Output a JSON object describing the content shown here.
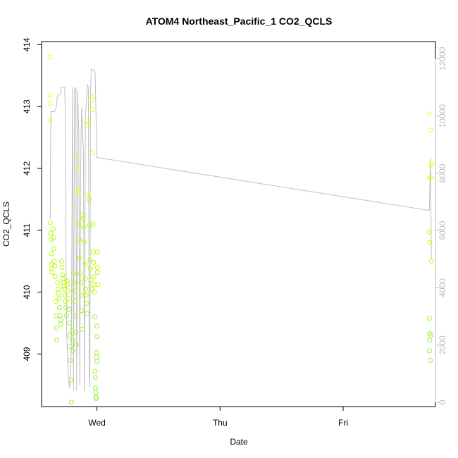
{
  "chart_data": {
    "type": "scatter",
    "title": "ATOM4 Northeast_Pacific_1 CO2_QCLS",
    "xlabel": "Date",
    "ylabel": "CO2_QCLS",
    "x_range_days": [
      -0.45,
      2.75
    ],
    "x_ticks": [
      {
        "label": "Wed",
        "value": 0
      },
      {
        "label": "Thu",
        "value": 1
      },
      {
        "label": "Fri",
        "value": 2
      }
    ],
    "ylim": [
      408.15,
      414.05
    ],
    "y_ticks": [
      409,
      410,
      411,
      412,
      413,
      414
    ],
    "y2lim": [
      -150,
      12600
    ],
    "y2_ticks": [
      0,
      2000,
      4000,
      6000,
      8000,
      10000,
      12000
    ],
    "grid": false,
    "colors": {
      "point_gradient": [
        "#e6ff33",
        "#b4ff00",
        "#9ef03a"
      ],
      "secondary_line": "#c0c0c0",
      "secondary_axis": "#bdbdbd"
    },
    "series": [
      {
        "kind": "points",
        "axis": "left",
        "points": [
          [
            -0.38,
            413.8
          ],
          [
            -0.38,
            413.18
          ],
          [
            -0.38,
            413.05
          ],
          [
            -0.38,
            412.78
          ],
          [
            -0.38,
            411.12
          ],
          [
            -0.375,
            410.95
          ],
          [
            -0.372,
            410.85
          ],
          [
            -0.37,
            410.62
          ],
          [
            -0.368,
            410.45
          ],
          [
            -0.366,
            410.38
          ],
          [
            -0.364,
            410.32
          ],
          [
            -0.355,
            411.02
          ],
          [
            -0.352,
            410.88
          ],
          [
            -0.35,
            410.7
          ],
          [
            -0.347,
            410.5
          ],
          [
            -0.344,
            410.42
          ],
          [
            -0.34,
            410.25
          ],
          [
            -0.336,
            409.85
          ],
          [
            -0.332,
            409.62
          ],
          [
            -0.33,
            409.42
          ],
          [
            -0.328,
            409.22
          ],
          [
            -0.32,
            410.15
          ],
          [
            -0.316,
            410.05
          ],
          [
            -0.312,
            409.98
          ],
          [
            -0.308,
            409.9
          ],
          [
            -0.304,
            409.75
          ],
          [
            -0.3,
            409.62
          ],
          [
            -0.296,
            409.55
          ],
          [
            -0.292,
            409.48
          ],
          [
            -0.288,
            410.5
          ],
          [
            -0.284,
            410.4
          ],
          [
            -0.28,
            410.28
          ],
          [
            -0.276,
            410.22
          ],
          [
            -0.272,
            410.15
          ],
          [
            -0.268,
            410.1
          ],
          [
            -0.264,
            410.05
          ],
          [
            -0.26,
            409.95
          ],
          [
            -0.256,
            409.85
          ],
          [
            -0.252,
            409.75
          ],
          [
            -0.248,
            409.62
          ],
          [
            -0.244,
            410.18
          ],
          [
            -0.24,
            410.12
          ],
          [
            -0.236,
            410.02
          ],
          [
            -0.232,
            409.9
          ],
          [
            -0.228,
            409.72
          ],
          [
            -0.224,
            409.5
          ],
          [
            -0.22,
            409.3
          ],
          [
            -0.218,
            409.12
          ],
          [
            -0.216,
            408.9
          ],
          [
            -0.212,
            408.58
          ],
          [
            -0.208,
            408.22
          ],
          [
            -0.204,
            409.38
          ],
          [
            -0.2,
            409.22
          ],
          [
            -0.196,
            409.05
          ],
          [
            -0.192,
            410.3
          ],
          [
            -0.188,
            410.15
          ],
          [
            -0.184,
            410.02
          ],
          [
            -0.18,
            409.85
          ],
          [
            -0.176,
            409.62
          ],
          [
            -0.172,
            409.35
          ],
          [
            -0.168,
            409.15
          ],
          [
            -0.164,
            412.18
          ],
          [
            -0.16,
            412.0
          ],
          [
            -0.156,
            411.65
          ],
          [
            -0.152,
            411.6
          ],
          [
            -0.148,
            411.1
          ],
          [
            -0.144,
            410.85
          ],
          [
            -0.14,
            410.55
          ],
          [
            -0.136,
            410.3
          ],
          [
            -0.132,
            410.15
          ],
          [
            -0.128,
            409.95
          ],
          [
            -0.124,
            409.7
          ],
          [
            -0.12,
            409.4
          ],
          [
            -0.116,
            411.25
          ],
          [
            -0.112,
            411.18
          ],
          [
            -0.108,
            411.05
          ],
          [
            -0.104,
            410.8
          ],
          [
            -0.1,
            410.45
          ],
          [
            -0.096,
            410.22
          ],
          [
            -0.092,
            410.05
          ],
          [
            -0.088,
            409.95
          ],
          [
            -0.084,
            409.82
          ],
          [
            -0.08,
            409.65
          ],
          [
            -0.076,
            412.78
          ],
          [
            -0.072,
            412.7
          ],
          [
            -0.068,
            411.58
          ],
          [
            -0.064,
            411.5
          ],
          [
            -0.06,
            411.08
          ],
          [
            -0.056,
            410.52
          ],
          [
            -0.052,
            410.38
          ],
          [
            -0.048,
            410.2
          ],
          [
            -0.044,
            410.05
          ],
          [
            -0.04,
            413.15
          ],
          [
            -0.038,
            413.1
          ],
          [
            -0.036,
            412.95
          ],
          [
            -0.034,
            412.25
          ],
          [
            -0.032,
            411.1
          ],
          [
            -0.03,
            410.65
          ],
          [
            -0.028,
            410.48
          ],
          [
            -0.026,
            410.25
          ],
          [
            -0.024,
            410.12
          ],
          [
            -0.02,
            410.0
          ],
          [
            -0.018,
            409.6
          ],
          [
            -0.016,
            408.72
          ],
          [
            -0.014,
            408.62
          ],
          [
            -0.012,
            408.45
          ],
          [
            -0.01,
            408.38
          ],
          [
            -0.008,
            408.3
          ],
          [
            -0.006,
            408.28
          ],
          [
            -0.004,
            409.02
          ],
          [
            -0.002,
            408.95
          ],
          [
            0.0,
            409.28
          ],
          [
            0.0,
            409.45
          ],
          [
            0.0,
            408.88
          ],
          [
            0.002,
            410.4
          ],
          [
            0.004,
            410.32
          ],
          [
            0.006,
            410.65
          ],
          [
            0.008,
            410.12
          ],
          [
            2.7,
            412.88
          ],
          [
            2.71,
            412.62
          ],
          [
            2.72,
            412.08
          ],
          [
            2.71,
            412.05
          ],
          [
            2.7,
            411.85
          ],
          [
            2.715,
            411.85
          ],
          [
            2.7,
            410.97
          ],
          [
            2.705,
            410.8
          ],
          [
            2.715,
            410.5
          ],
          [
            2.7,
            409.58
          ],
          [
            2.705,
            409.33
          ],
          [
            2.712,
            409.3
          ],
          [
            2.703,
            409.22
          ],
          [
            2.7,
            409.05
          ],
          [
            2.708,
            408.9
          ]
        ]
      },
      {
        "kind": "line",
        "axis": "right",
        "points": [
          [
            -0.38,
            6400
          ],
          [
            -0.375,
            10150
          ],
          [
            -0.345,
            10150
          ],
          [
            -0.33,
            10300
          ],
          [
            -0.322,
            10700
          ],
          [
            -0.312,
            10750
          ],
          [
            -0.298,
            10760
          ],
          [
            -0.292,
            11000
          ],
          [
            -0.262,
            11000
          ],
          [
            -0.258,
            10350
          ],
          [
            -0.252,
            5300
          ],
          [
            -0.246,
            2400
          ],
          [
            -0.238,
            1500
          ],
          [
            -0.232,
            900
          ],
          [
            -0.225,
            500
          ],
          [
            -0.215,
            900
          ],
          [
            -0.208,
            2000
          ],
          [
            -0.198,
            11000
          ],
          [
            -0.19,
            400
          ],
          [
            -0.182,
            10900
          ],
          [
            -0.172,
            11000
          ],
          [
            -0.165,
            400
          ],
          [
            -0.158,
            10900
          ],
          [
            -0.148,
            9500
          ],
          [
            -0.14,
            600
          ],
          [
            -0.132,
            8400
          ],
          [
            -0.125,
            10300
          ],
          [
            -0.118,
            9600
          ],
          [
            -0.11,
            8800
          ],
          [
            -0.102,
            400
          ],
          [
            -0.094,
            10000
          ],
          [
            -0.086,
            10500
          ],
          [
            -0.078,
            11100
          ],
          [
            -0.07,
            11000
          ],
          [
            -0.062,
            1000
          ],
          [
            -0.058,
            500
          ],
          [
            -0.052,
            10800
          ],
          [
            -0.046,
            11650
          ],
          [
            -0.04,
            11600
          ],
          [
            -0.02,
            11600
          ],
          [
            -0.015,
            11500
          ],
          [
            0.0,
            8550
          ],
          [
            2.7,
            6700
          ],
          [
            2.71,
            8550
          ],
          [
            2.716,
            5000
          ]
        ]
      }
    ]
  }
}
